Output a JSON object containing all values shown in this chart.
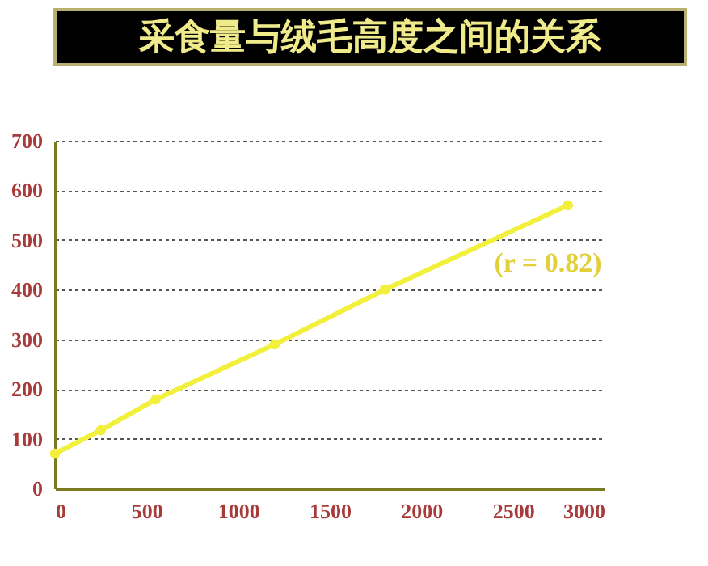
{
  "chart_data": {
    "type": "line",
    "title": "采食量与绒毛高度之间的关系",
    "x": [
      0,
      250,
      550,
      1200,
      1800,
      2800
    ],
    "series": [
      {
        "color": "#f2f03c",
        "values": [
          70,
          117,
          179,
          290,
          400,
          570
        ]
      }
    ],
    "xlim": [
      0,
      3000
    ],
    "xticks": [
      0,
      500,
      1000,
      1500,
      2000,
      2500,
      3000
    ],
    "ylim": [
      0,
      700
    ],
    "yticks": [
      0,
      100,
      200,
      300,
      400,
      500,
      600,
      700
    ],
    "grid": "y",
    "marker": "circle",
    "line_style": "solid",
    "annotations": [
      "(r = 0.82)"
    ]
  }
}
